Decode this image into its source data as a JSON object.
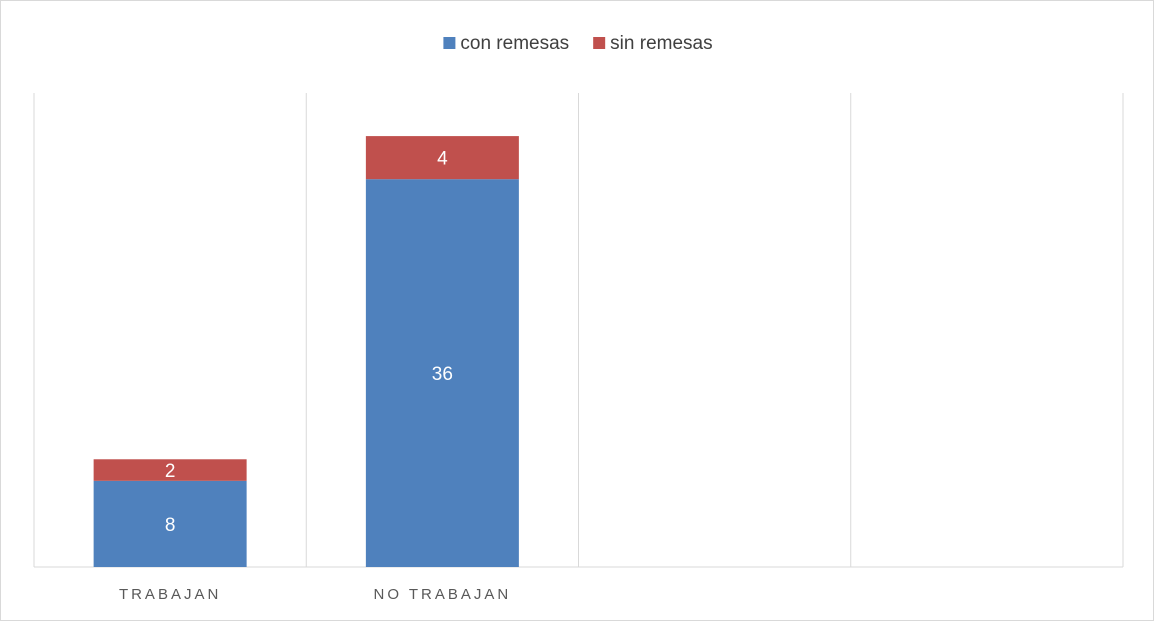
{
  "chart_data": {
    "type": "bar",
    "stacked": true,
    "categories": [
      "TRABAJAN",
      "NO TRABAJAN",
      "",
      ""
    ],
    "series": [
      {
        "name": "con  remesas",
        "values": [
          8,
          36,
          null,
          null
        ],
        "color": "#4f81bd"
      },
      {
        "name": "sin  remesas",
        "values": [
          2,
          4,
          null,
          null
        ],
        "color": "#c0504d"
      }
    ],
    "title": "",
    "xlabel": "",
    "ylabel": "",
    "ylim": [
      0,
      44
    ],
    "legend_position": "top",
    "grid": "vertical category separators"
  }
}
